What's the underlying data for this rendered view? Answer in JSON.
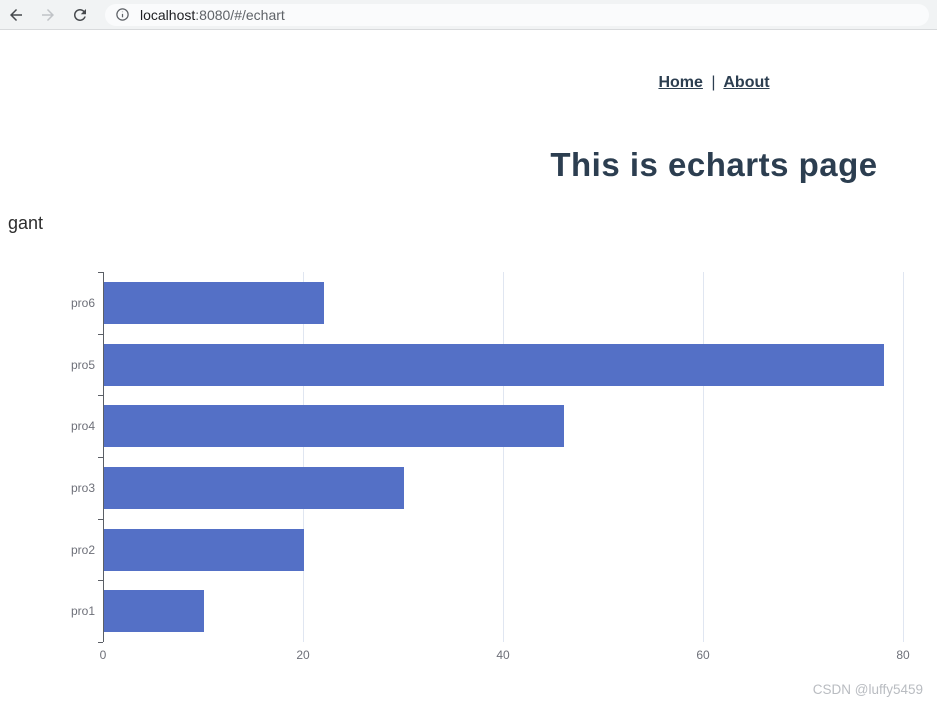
{
  "browser": {
    "url_host": "localhost",
    "url_rest": ":8080/#/echart"
  },
  "nav": {
    "home_label": "Home",
    "separator": "|",
    "about_label": "About",
    "link_color": "#2c3e50"
  },
  "main": {
    "heading": "This is echarts page",
    "heading_color": "#2c3e50",
    "watermark": "CSDN @luffy5459"
  },
  "chart_data": {
    "type": "bar",
    "orientation": "horizontal",
    "title": "gant",
    "categories": [
      "pro1",
      "pro2",
      "pro3",
      "pro4",
      "pro5",
      "pro6"
    ],
    "values": [
      10,
      20,
      30,
      46,
      78,
      22
    ],
    "xlabel": "",
    "ylabel": "",
    "xlim": [
      0,
      80
    ],
    "x_ticks": [
      0,
      20,
      40,
      60,
      80
    ],
    "grid": true,
    "legend": false,
    "bar_color": "#5470c6",
    "gridline_color": "#e0e6f1",
    "axis_label_color": "#6e7079",
    "axis_line_color": "#5b5f66"
  }
}
